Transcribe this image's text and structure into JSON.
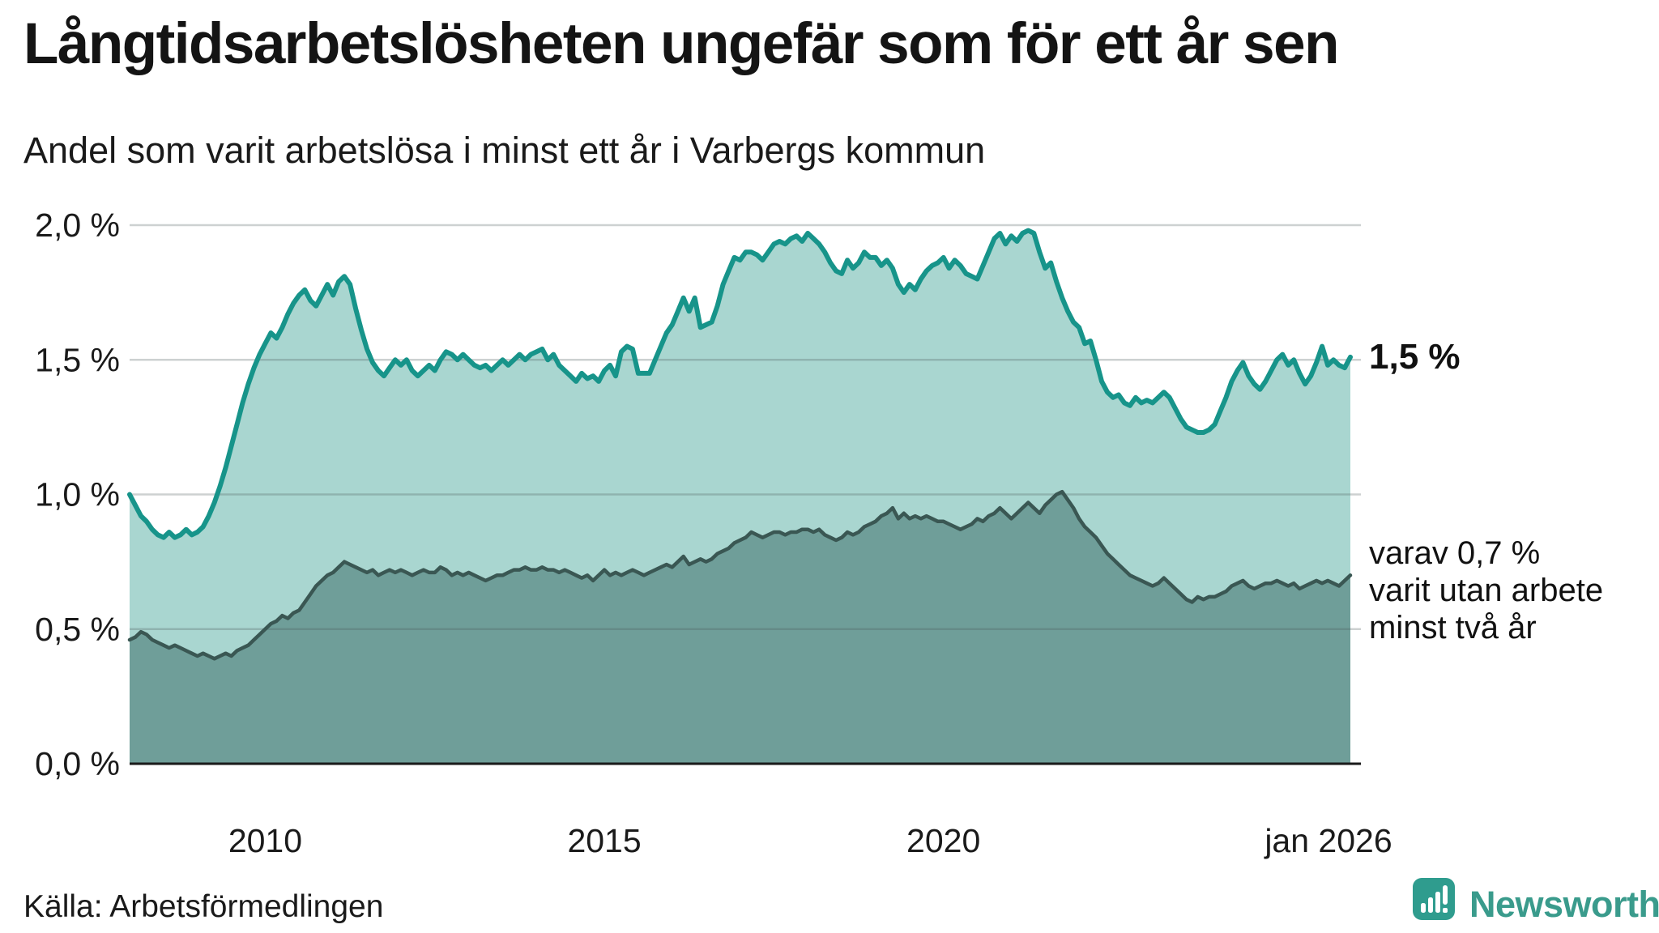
{
  "header": {
    "title": "Långtidsarbetslösheten ungefär som för ett år sen",
    "subtitle": "Andel som varit arbetslösa i minst ett år i Varbergs kommun"
  },
  "annotations": {
    "end_value_label": "1,5 %",
    "secondary_label_lines": [
      "varav 0,7 %",
      "varit utan arbete",
      "minst två år"
    ]
  },
  "source": {
    "label": "Källa: Arbetsförmedlingen"
  },
  "branding": {
    "name": "Newsworthy",
    "brand_color": "#2f9c8e",
    "text_color": "#3a9b8c"
  },
  "chart_data": {
    "type": "area",
    "title": "Långtidsarbetslösheten ungefär som för ett år sen",
    "subtitle": "Andel som varit arbetslösa i minst ett år i Varbergs kommun",
    "xlabel": "",
    "ylabel": "",
    "ylim": [
      0,
      2.0
    ],
    "x_start_year": 2008.0,
    "x_end_year": 2026.0,
    "x_step": "monthly",
    "grid": true,
    "yticks": [
      {
        "label": "2,0 %",
        "value": 2.0
      },
      {
        "label": "1,5 %",
        "value": 1.5
      },
      {
        "label": "1,0 %",
        "value": 1.0
      },
      {
        "label": "0,5 %",
        "value": 0.5
      },
      {
        "label": "0,0 %",
        "value": 0.0
      }
    ],
    "xticks": [
      {
        "label": "2010",
        "year": 2010
      },
      {
        "label": "2015",
        "year": 2015
      },
      {
        "label": "2020",
        "year": 2020
      },
      {
        "label": "jan 2026",
        "year": 2026
      }
    ],
    "series": [
      {
        "name": "varit arbetslösa i minst ett år",
        "end_value": 1.5,
        "line_color": "#17948a",
        "fill_color": "#a9d6d0",
        "line_width": 6,
        "values": [
          1.0,
          0.96,
          0.92,
          0.9,
          0.87,
          0.85,
          0.84,
          0.86,
          0.84,
          0.85,
          0.87,
          0.85,
          0.86,
          0.88,
          0.92,
          0.97,
          1.03,
          1.1,
          1.18,
          1.26,
          1.34,
          1.41,
          1.47,
          1.52,
          1.56,
          1.6,
          1.58,
          1.62,
          1.67,
          1.71,
          1.74,
          1.76,
          1.72,
          1.7,
          1.74,
          1.78,
          1.74,
          1.79,
          1.81,
          1.78,
          1.69,
          1.61,
          1.54,
          1.49,
          1.46,
          1.44,
          1.47,
          1.5,
          1.48,
          1.5,
          1.46,
          1.44,
          1.46,
          1.48,
          1.46,
          1.5,
          1.53,
          1.52,
          1.5,
          1.52,
          1.5,
          1.48,
          1.47,
          1.48,
          1.46,
          1.48,
          1.5,
          1.48,
          1.5,
          1.52,
          1.5,
          1.52,
          1.53,
          1.54,
          1.5,
          1.52,
          1.48,
          1.46,
          1.44,
          1.42,
          1.45,
          1.43,
          1.44,
          1.42,
          1.46,
          1.48,
          1.44,
          1.53,
          1.55,
          1.54,
          1.45,
          1.45,
          1.45,
          1.5,
          1.55,
          1.6,
          1.63,
          1.68,
          1.73,
          1.68,
          1.73,
          1.62,
          1.63,
          1.64,
          1.7,
          1.78,
          1.83,
          1.88,
          1.87,
          1.9,
          1.9,
          1.89,
          1.87,
          1.9,
          1.93,
          1.94,
          1.93,
          1.95,
          1.96,
          1.94,
          1.97,
          1.95,
          1.93,
          1.9,
          1.86,
          1.83,
          1.82,
          1.87,
          1.84,
          1.86,
          1.9,
          1.88,
          1.88,
          1.85,
          1.87,
          1.84,
          1.78,
          1.75,
          1.78,
          1.76,
          1.8,
          1.83,
          1.85,
          1.86,
          1.88,
          1.84,
          1.87,
          1.85,
          1.82,
          1.81,
          1.8,
          1.85,
          1.9,
          1.95,
          1.97,
          1.93,
          1.96,
          1.94,
          1.97,
          1.98,
          1.97,
          1.9,
          1.84,
          1.86,
          1.79,
          1.73,
          1.68,
          1.64,
          1.62,
          1.56,
          1.57,
          1.5,
          1.42,
          1.38,
          1.36,
          1.37,
          1.34,
          1.33,
          1.36,
          1.34,
          1.35,
          1.34,
          1.36,
          1.38,
          1.36,
          1.32,
          1.28,
          1.25,
          1.24,
          1.23,
          1.23,
          1.24,
          1.26,
          1.31,
          1.36,
          1.42,
          1.46,
          1.49,
          1.44,
          1.41,
          1.39,
          1.42,
          1.46,
          1.5,
          1.52,
          1.48,
          1.5,
          1.45,
          1.41,
          1.44,
          1.49,
          1.55,
          1.48,
          1.5,
          1.48,
          1.47,
          1.51
        ]
      },
      {
        "name": "varit utan arbete minst två år",
        "end_value": 0.7,
        "line_color": "#3a5753",
        "fill_color": "#6f9e99",
        "line_width": 4.5,
        "values": [
          0.46,
          0.47,
          0.49,
          0.48,
          0.46,
          0.45,
          0.44,
          0.43,
          0.44,
          0.43,
          0.42,
          0.41,
          0.4,
          0.41,
          0.4,
          0.39,
          0.4,
          0.41,
          0.4,
          0.42,
          0.43,
          0.44,
          0.46,
          0.48,
          0.5,
          0.52,
          0.53,
          0.55,
          0.54,
          0.56,
          0.57,
          0.6,
          0.63,
          0.66,
          0.68,
          0.7,
          0.71,
          0.73,
          0.75,
          0.74,
          0.73,
          0.72,
          0.71,
          0.72,
          0.7,
          0.71,
          0.72,
          0.71,
          0.72,
          0.71,
          0.7,
          0.71,
          0.72,
          0.71,
          0.71,
          0.73,
          0.72,
          0.7,
          0.71,
          0.7,
          0.71,
          0.7,
          0.69,
          0.68,
          0.69,
          0.7,
          0.7,
          0.71,
          0.72,
          0.72,
          0.73,
          0.72,
          0.72,
          0.73,
          0.72,
          0.72,
          0.71,
          0.72,
          0.71,
          0.7,
          0.69,
          0.7,
          0.68,
          0.7,
          0.72,
          0.7,
          0.71,
          0.7,
          0.71,
          0.72,
          0.71,
          0.7,
          0.71,
          0.72,
          0.73,
          0.74,
          0.73,
          0.75,
          0.77,
          0.74,
          0.75,
          0.76,
          0.75,
          0.76,
          0.78,
          0.79,
          0.8,
          0.82,
          0.83,
          0.84,
          0.86,
          0.85,
          0.84,
          0.85,
          0.86,
          0.86,
          0.85,
          0.86,
          0.86,
          0.87,
          0.87,
          0.86,
          0.87,
          0.85,
          0.84,
          0.83,
          0.84,
          0.86,
          0.85,
          0.86,
          0.88,
          0.89,
          0.9,
          0.92,
          0.93,
          0.95,
          0.91,
          0.93,
          0.91,
          0.92,
          0.91,
          0.92,
          0.91,
          0.9,
          0.9,
          0.89,
          0.88,
          0.87,
          0.88,
          0.89,
          0.91,
          0.9,
          0.92,
          0.93,
          0.95,
          0.93,
          0.91,
          0.93,
          0.95,
          0.97,
          0.95,
          0.93,
          0.96,
          0.98,
          1.0,
          1.01,
          0.98,
          0.95,
          0.91,
          0.88,
          0.86,
          0.84,
          0.81,
          0.78,
          0.76,
          0.74,
          0.72,
          0.7,
          0.69,
          0.68,
          0.67,
          0.66,
          0.67,
          0.69,
          0.67,
          0.65,
          0.63,
          0.61,
          0.6,
          0.62,
          0.61,
          0.62,
          0.62,
          0.63,
          0.64,
          0.66,
          0.67,
          0.68,
          0.66,
          0.65,
          0.66,
          0.67,
          0.67,
          0.68,
          0.67,
          0.66,
          0.67,
          0.65,
          0.66,
          0.67,
          0.68,
          0.67,
          0.68,
          0.67,
          0.66,
          0.68,
          0.7
        ]
      }
    ]
  }
}
